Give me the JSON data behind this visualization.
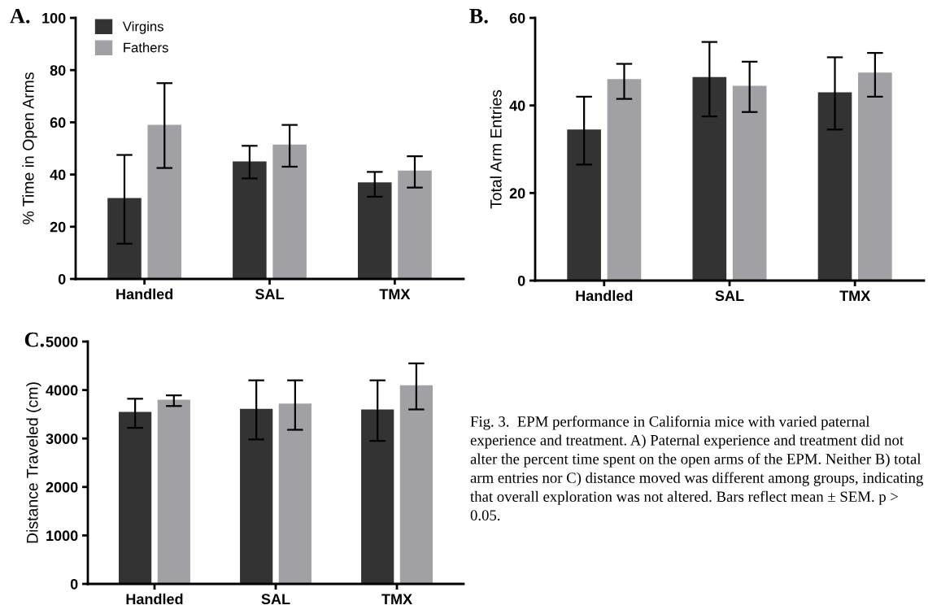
{
  "chart_data": [
    {
      "type": "bar",
      "title": "A.",
      "ylabel": "% Time in Open Arms",
      "categories": [
        "Handled",
        "SAL",
        "TMX"
      ],
      "ylim": [
        0,
        100
      ],
      "yticks": [
        0,
        20,
        40,
        60,
        80,
        100
      ],
      "legend": "top left",
      "grid": false,
      "series": [
        {
          "name": "Virgins",
          "color": "#333333",
          "values": [
            31,
            45,
            37
          ],
          "errors": [
            [
              13.5,
              47.5
            ],
            [
              38.5,
              51
            ],
            [
              31.5,
              41
            ]
          ]
        },
        {
          "name": "Fathers",
          "color": "#a1a1a5",
          "values": [
            59,
            51.5,
            41.5
          ],
          "errors": [
            [
              42.5,
              75
            ],
            [
              43,
              59
            ],
            [
              35,
              47
            ]
          ]
        }
      ]
    },
    {
      "type": "bar",
      "title": "B.",
      "ylabel": "Total Arm Entries",
      "categories": [
        "Handled",
        "SAL",
        "TMX"
      ],
      "ylim": [
        0,
        60
      ],
      "yticks": [
        0,
        20,
        40,
        60
      ],
      "grid": false,
      "series": [
        {
          "color": "#333333",
          "values": [
            34.5,
            46.5,
            43
          ],
          "errors": [
            [
              26.5,
              42
            ],
            [
              37.5,
              54.5
            ],
            [
              34.5,
              51
            ]
          ]
        },
        {
          "color": "#a1a1a5",
          "values": [
            46,
            44.5,
            47.5
          ],
          "errors": [
            [
              41.5,
              49.5
            ],
            [
              38.5,
              50
            ],
            [
              42,
              52
            ]
          ]
        }
      ]
    },
    {
      "type": "bar",
      "title": "C.",
      "ylabel": "Distance Traveled (cm)",
      "categories": [
        "Handled",
        "SAL",
        "TMX"
      ],
      "ylim": [
        0,
        5000
      ],
      "yticks": [
        0,
        1000,
        2000,
        3000,
        4000,
        5000
      ],
      "grid": false,
      "series": [
        {
          "color": "#333333",
          "values": [
            3550,
            3610,
            3600
          ],
          "errors": [
            [
              3220,
              3820
            ],
            [
              2980,
              4200
            ],
            [
              2950,
              4200
            ]
          ]
        },
        {
          "color": "#a1a1a5",
          "values": [
            3800,
            3720,
            4100
          ],
          "errors": [
            [
              3670,
              3890
            ],
            [
              3180,
              4200
            ],
            [
              3600,
              4550
            ]
          ]
        }
      ]
    },
    {
      "type": "other",
      "annotations": [
        "Fig. 3.  EPM performance in California mice with varied paternal experience and treatment. A) Paternal experience and treatment did not alter the percent time spent on the open arms of the EPM. Neither B) total arm entries nor C) distance moved was different among groups, indicating that overall exploration was not altered. Bars reflect mean ± SEM. p > 0.05."
      ]
    }
  ]
}
